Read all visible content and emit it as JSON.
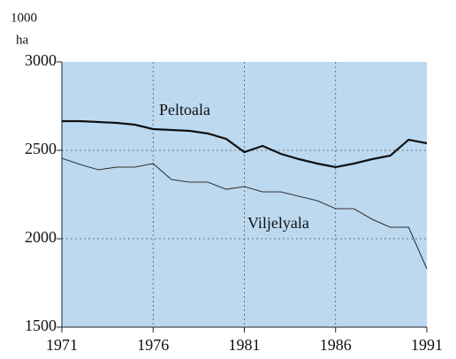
{
  "chart_data": {
    "type": "line",
    "ylabel": [
      "1000",
      "ha"
    ],
    "x": [
      1971,
      1972,
      1973,
      1974,
      1975,
      1976,
      1977,
      1978,
      1979,
      1980,
      1981,
      1982,
      1983,
      1984,
      1985,
      1986,
      1987,
      1988,
      1989,
      1990,
      1991
    ],
    "series": [
      {
        "name": "Peltoala",
        "color": "#111111",
        "width": 2.2,
        "values": [
          2665,
          2665,
          2660,
          2655,
          2645,
          2620,
          2615,
          2610,
          2595,
          2565,
          2490,
          2525,
          2480,
          2450,
          2425,
          2405,
          2425,
          2450,
          2470,
          2560,
          2540
        ]
      },
      {
        "name": "Viljelyala",
        "color": "#333333",
        "width": 1.1,
        "values": [
          2455,
          2420,
          2390,
          2405,
          2405,
          2425,
          2335,
          2320,
          2320,
          2280,
          2295,
          2265,
          2265,
          2240,
          2215,
          2170,
          2170,
          2110,
          2065,
          2065,
          1830
        ]
      }
    ],
    "xlim": [
      1971,
      1991
    ],
    "xticks": [
      1971,
      1976,
      1981,
      1986,
      1991
    ],
    "ylim": [
      1500,
      3000
    ],
    "yticks": [
      1500,
      2000,
      2500,
      3000
    ],
    "grid": true,
    "background": "#bcd9f0"
  }
}
